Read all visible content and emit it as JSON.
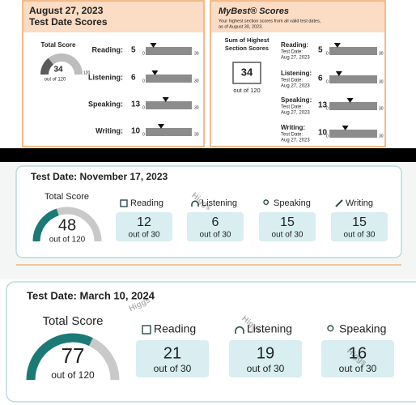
{
  "report1": {
    "title": "August 27, 2023",
    "subtitle": "Test Date Scores",
    "total_label": "Total Score",
    "total": 34,
    "gauge_max": 120,
    "out_of": "out of 120",
    "scale": [
      0,
      30
    ],
    "sections": [
      {
        "name": "Reading:",
        "score": 5
      },
      {
        "name": "Listening:",
        "score": 6
      },
      {
        "name": "Speaking:",
        "score": 13
      },
      {
        "name": "Writing:",
        "score": 10
      }
    ]
  },
  "mybest": {
    "title": "MyBest® Scores",
    "note": [
      "Your highest section scores from all valid test dates,",
      "as of August 30, 2023."
    ],
    "sum_label": [
      "Sum of Highest",
      "Section Scores"
    ],
    "sum": 34,
    "out_of": "out of 120",
    "sections": [
      {
        "name": "Reading:",
        "date_label": "Test Date:",
        "date": "Aug 27, 2023",
        "score": 5
      },
      {
        "name": "Listening:",
        "date_label": "Test Date:",
        "date": "Aug 27, 2023",
        "score": 6
      },
      {
        "name": "Speaking:",
        "date_label": "Test Date:",
        "date": "Aug 27, 2023",
        "score": 13
      },
      {
        "name": "Writing:",
        "date_label": "Test Date:",
        "date": "Aug 27, 2023",
        "score": 10
      }
    ]
  },
  "report2": {
    "title": "Test Date: November 17, 2023",
    "total_label": "Total Score",
    "total": 48,
    "out_of": "out of 120",
    "sections": [
      {
        "name": "Reading",
        "score": 12,
        "out_of": "out of 30"
      },
      {
        "name": "Listening",
        "score": 6,
        "out_of": "out of 30"
      },
      {
        "name": "Speaking",
        "score": 15,
        "out_of": "out of 30"
      },
      {
        "name": "Writing",
        "score": 15,
        "out_of": "out of 30"
      }
    ]
  },
  "report3": {
    "title": "Test Date: March 10, 2024",
    "total_label": "Total Score",
    "total": 77,
    "out_of": "out of 120",
    "sections": [
      {
        "name": "Reading",
        "score": 21,
        "out_of": "out of 30"
      },
      {
        "name": "Listening",
        "score": 19,
        "out_of": "out of 30"
      },
      {
        "name": "Speaking",
        "score": 16,
        "out_of": "out of 30"
      }
    ]
  },
  "watermark": "Higgs"
}
